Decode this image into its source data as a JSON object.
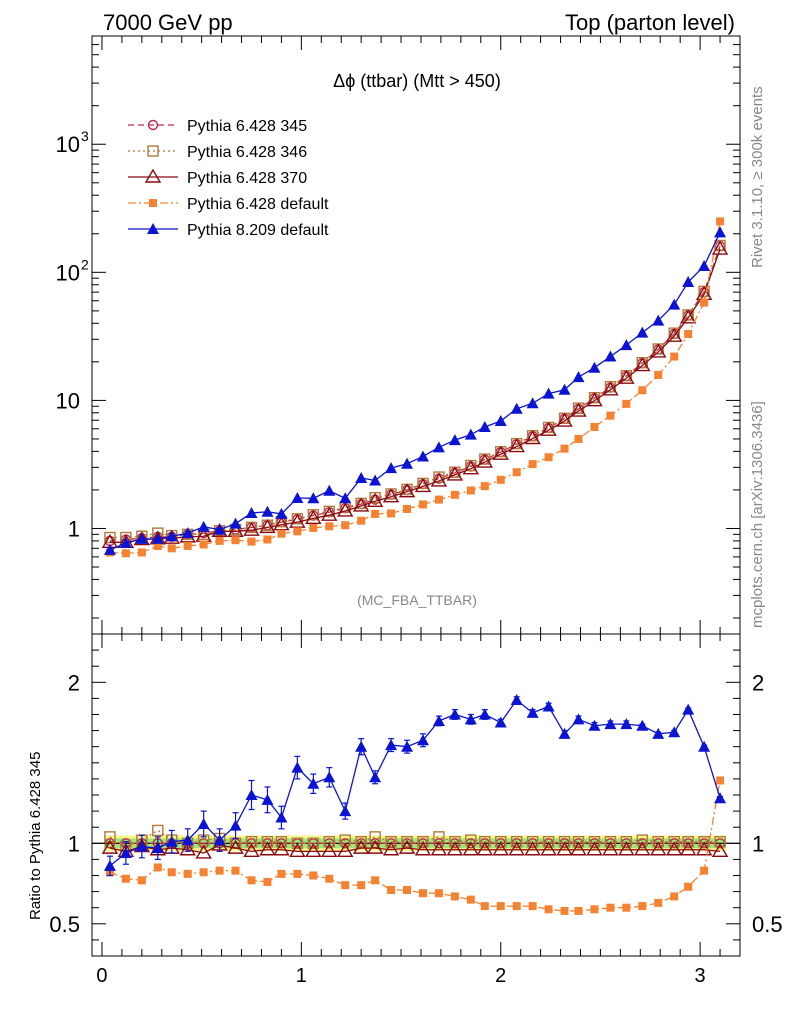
{
  "header": {
    "left": "7000 GeV pp",
    "right": "Top (parton level)"
  },
  "side": {
    "rivet": "Rivet 3.1.10, ≥ 300k events",
    "mcplots": "mcplots.cern.ch [arXiv:1306.3436]"
  },
  "chart_data": {
    "type": "line",
    "title": "Δϕ (ttbar) (Mtt > 450)",
    "analysis_tag": "(MC_FBA_TTBAR)",
    "xlabel": "",
    "upper": {
      "ylabel": "",
      "yscale": "log",
      "ylim": [
        0.15,
        7000
      ],
      "yticks": [
        {
          "v": 1,
          "label": "1"
        },
        {
          "v": 10,
          "label": "10"
        },
        {
          "v": 100,
          "label": "10",
          "sup": "2"
        },
        {
          "v": 1000,
          "label": "10",
          "sup": "3"
        }
      ]
    },
    "lower": {
      "ylabel": "Ratio to Pythia 6.428 345",
      "ylim": [
        0.3,
        2.3
      ],
      "yticks": [
        {
          "v": 0.5,
          "label": "0.5"
        },
        {
          "v": 1,
          "label": "1"
        },
        {
          "v": 2,
          "label": "2"
        }
      ],
      "reference_band": [
        0.97,
        1.03
      ]
    },
    "xlim": [
      -0.05,
      3.2
    ],
    "xticks": [
      {
        "v": 0,
        "label": "0"
      },
      {
        "v": 1,
        "label": "1"
      },
      {
        "v": 2,
        "label": "2"
      },
      {
        "v": 3,
        "label": "3"
      }
    ],
    "x": [
      0.04,
      0.12,
      0.2,
      0.28,
      0.35,
      0.43,
      0.51,
      0.59,
      0.67,
      0.75,
      0.83,
      0.9,
      0.98,
      1.06,
      1.14,
      1.22,
      1.3,
      1.37,
      1.45,
      1.53,
      1.61,
      1.69,
      1.77,
      1.85,
      1.92,
      2.0,
      2.08,
      2.16,
      2.24,
      2.32,
      2.39,
      2.47,
      2.55,
      2.63,
      2.71,
      2.79,
      2.87,
      2.94,
      3.02,
      3.1
    ],
    "series": [
      {
        "name": "Pythia 6.428 345",
        "color": "#c0284a",
        "marker": "circle",
        "line": "dashed",
        "values": [
          0.8,
          0.82,
          0.84,
          0.86,
          0.86,
          0.9,
          0.92,
          0.96,
          0.98,
          1.02,
          1.06,
          1.12,
          1.18,
          1.26,
          1.34,
          1.44,
          1.55,
          1.68,
          1.84,
          2.0,
          2.22,
          2.45,
          2.72,
          3.05,
          3.45,
          3.95,
          4.55,
          5.25,
          6.1,
          7.2,
          8.6,
          10.4,
          12.6,
          15.5,
          19.5,
          25.0,
          33.0,
          46.0,
          70.0,
          160.0
        ],
        "ratio": [
          1.0,
          1.0,
          1.0,
          1.0,
          1.0,
          1.0,
          1.0,
          1.0,
          1.0,
          1.0,
          1.0,
          1.0,
          1.0,
          1.0,
          1.0,
          1.0,
          1.0,
          1.0,
          1.0,
          1.0,
          1.0,
          1.0,
          1.0,
          1.0,
          1.0,
          1.0,
          1.0,
          1.0,
          1.0,
          1.0,
          1.0,
          1.0,
          1.0,
          1.0,
          1.0,
          1.0,
          1.0,
          1.0,
          1.0,
          1.0
        ]
      },
      {
        "name": "Pythia 6.428 346",
        "color": "#b07a3a",
        "marker": "square-open",
        "line": "dotted",
        "values": [
          0.85,
          0.85,
          0.87,
          0.92,
          0.88,
          0.9,
          0.9,
          0.96,
          0.98,
          1.02,
          1.06,
          1.13,
          1.19,
          1.28,
          1.36,
          1.46,
          1.57,
          1.74,
          1.86,
          2.02,
          2.25,
          2.52,
          2.75,
          3.1,
          3.48,
          3.98,
          4.6,
          5.3,
          6.15,
          7.25,
          8.7,
          10.5,
          12.8,
          15.6,
          19.7,
          25.2,
          33.5,
          46.5,
          71.0,
          162.0
        ],
        "ratio": [
          1.04,
          0.98,
          1.02,
          1.08,
          1.02,
          1.0,
          1.02,
          1.03,
          1.0,
          1.01,
          1.01,
          1.01,
          1.0,
          1.0,
          1.01,
          1.02,
          1.01,
          1.04,
          1.01,
          1.01,
          1.01,
          1.04,
          1.01,
          1.02,
          1.01,
          1.01,
          1.01,
          1.01,
          1.01,
          1.01,
          1.01,
          1.01,
          1.01,
          1.01,
          1.02,
          1.01,
          1.01,
          1.01,
          1.01,
          1.01
        ]
      },
      {
        "name": "Pythia 6.428 370",
        "color": "#8b0a12",
        "marker": "triangle-open",
        "line": "solid",
        "values": [
          0.78,
          0.78,
          0.82,
          0.83,
          0.84,
          0.86,
          0.87,
          0.95,
          0.95,
          0.97,
          1.02,
          1.07,
          1.12,
          1.2,
          1.27,
          1.37,
          1.5,
          1.63,
          1.77,
          1.94,
          2.13,
          2.35,
          2.62,
          2.93,
          3.3,
          3.8,
          4.36,
          5.04,
          5.85,
          6.9,
          8.25,
          9.95,
          12.1,
          14.9,
          18.7,
          23.9,
          31.7,
          44.1,
          67.4,
          152.0
        ],
        "ratio": [
          0.97,
          0.95,
          0.98,
          0.96,
          0.97,
          0.96,
          0.94,
          0.99,
          0.97,
          0.95,
          0.96,
          0.96,
          0.95,
          0.95,
          0.95,
          0.95,
          0.97,
          0.97,
          0.96,
          0.97,
          0.96,
          0.96,
          0.96,
          0.96,
          0.96,
          0.96,
          0.96,
          0.96,
          0.96,
          0.96,
          0.96,
          0.96,
          0.96,
          0.96,
          0.96,
          0.96,
          0.96,
          0.96,
          0.96,
          0.95
        ]
      },
      {
        "name": "Pythia 6.428 default",
        "color": "#f58231",
        "marker": "square-filled",
        "line": "dashdot",
        "values": [
          0.65,
          0.64,
          0.65,
          0.73,
          0.7,
          0.73,
          0.75,
          0.8,
          0.81,
          0.79,
          0.82,
          0.91,
          0.95,
          1.01,
          1.04,
          1.06,
          1.15,
          1.3,
          1.31,
          1.42,
          1.54,
          1.68,
          1.83,
          1.98,
          2.14,
          2.4,
          2.75,
          3.18,
          3.6,
          4.2,
          5.0,
          6.2,
          7.6,
          9.4,
          12.0,
          15.8,
          22.0,
          33.0,
          58.0,
          250.0
        ],
        "ratio": [
          0.82,
          0.78,
          0.77,
          0.85,
          0.82,
          0.81,
          0.82,
          0.83,
          0.83,
          0.77,
          0.76,
          0.81,
          0.81,
          0.8,
          0.78,
          0.74,
          0.74,
          0.77,
          0.71,
          0.71,
          0.69,
          0.69,
          0.67,
          0.65,
          0.61,
          0.61,
          0.61,
          0.61,
          0.59,
          0.58,
          0.58,
          0.59,
          0.6,
          0.6,
          0.61,
          0.63,
          0.67,
          0.73,
          0.83,
          1.39
        ]
      },
      {
        "name": "Pythia 8.209 default",
        "color": "#0a14d2",
        "marker": "triangle-filled",
        "line": "solid",
        "values": [
          0.68,
          0.77,
          0.83,
          0.83,
          0.87,
          0.92,
          1.03,
          0.98,
          1.09,
          1.32,
          1.35,
          1.3,
          1.73,
          1.72,
          1.97,
          1.72,
          2.48,
          2.37,
          2.96,
          3.2,
          3.65,
          4.3,
          4.9,
          5.4,
          6.2,
          6.9,
          8.6,
          9.5,
          11.3,
          12.1,
          15.2,
          18.0,
          22.0,
          27.0,
          33.8,
          42.0,
          56.0,
          84.0,
          112.0,
          205.0
        ],
        "ratio": [
          0.86,
          0.94,
          0.98,
          0.97,
          1.01,
          1.02,
          1.12,
          1.02,
          1.11,
          1.3,
          1.27,
          1.16,
          1.47,
          1.37,
          1.41,
          1.2,
          1.6,
          1.41,
          1.61,
          1.6,
          1.64,
          1.76,
          1.8,
          1.77,
          1.8,
          1.75,
          1.89,
          1.81,
          1.85,
          1.68,
          1.77,
          1.73,
          1.74,
          1.74,
          1.73,
          1.68,
          1.69,
          1.83,
          1.6,
          1.28
        ],
        "errors": [
          0.06,
          0.07,
          0.07,
          0.07,
          0.07,
          0.07,
          0.08,
          0.07,
          0.08,
          0.09,
          0.08,
          0.07,
          0.07,
          0.06,
          0.06,
          0.05,
          0.05,
          0.04,
          0.04,
          0.04,
          0.04,
          0.03,
          0.03,
          0.03,
          0.03,
          0.02,
          0.02,
          0.02,
          0.02,
          0.02,
          0.02,
          0.02,
          0.02,
          0.02,
          0.01,
          0.01,
          0.01,
          0.01,
          0.01,
          0.01
        ]
      }
    ]
  }
}
